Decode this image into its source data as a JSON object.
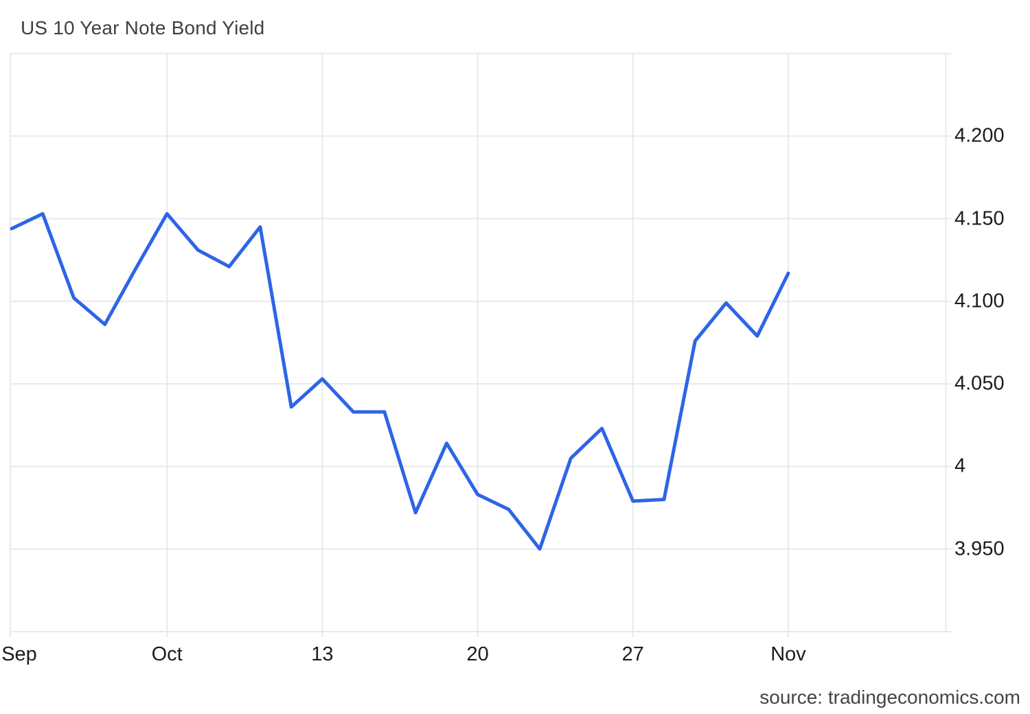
{
  "header": {
    "title": "US 10 Year Note Bond Yield"
  },
  "footer": {
    "source": "source: tradingeconomics.com"
  },
  "chart_data": {
    "type": "line",
    "title": "US 10 Year Note Bond Yield",
    "source": "source: tradingeconomics.com",
    "legend": "none",
    "grid": true,
    "x_axis": {
      "unit": "trading-day index",
      "ticks": [
        {
          "index": 0,
          "label": "Sep"
        },
        {
          "index": 5,
          "label": "Oct"
        },
        {
          "index": 10,
          "label": "13"
        },
        {
          "index": 15,
          "label": "20"
        },
        {
          "index": 20,
          "label": "27"
        },
        {
          "index": 25,
          "label": "Nov"
        }
      ]
    },
    "y_axis": {
      "side": "right",
      "ylim": [
        3.9,
        4.25
      ],
      "ticks": [
        {
          "value": 4.2,
          "label": "4.200"
        },
        {
          "value": 4.15,
          "label": "4.150"
        },
        {
          "value": 4.1,
          "label": "4.100"
        },
        {
          "value": 4.05,
          "label": "4.050"
        },
        {
          "value": 4.0,
          "label": "4"
        },
        {
          "value": 3.95,
          "label": "3.950"
        }
      ]
    },
    "series": [
      {
        "name": "US 10 Year Note Bond Yield",
        "color": "#2D65E7",
        "x": [
          0,
          1,
          2,
          3,
          4,
          5,
          6,
          7,
          8,
          9,
          10,
          11,
          12,
          13,
          14,
          15,
          16,
          17,
          18,
          19,
          20,
          21,
          22,
          23,
          24,
          25
        ],
        "values": [
          4.144,
          4.153,
          4.102,
          4.086,
          4.12,
          4.153,
          4.131,
          4.121,
          4.145,
          4.036,
          4.053,
          4.033,
          4.033,
          3.972,
          4.014,
          3.983,
          3.974,
          3.95,
          4.005,
          4.023,
          3.979,
          3.98,
          4.076,
          4.099,
          4.079,
          4.117
        ]
      }
    ],
    "colors": {
      "line": "#2D65E7",
      "grid": "#E7E9EC",
      "title_text": "#404040",
      "axis_text": "#1C1C1C",
      "source_text": "#444444",
      "background": "#FFFFFF"
    }
  }
}
